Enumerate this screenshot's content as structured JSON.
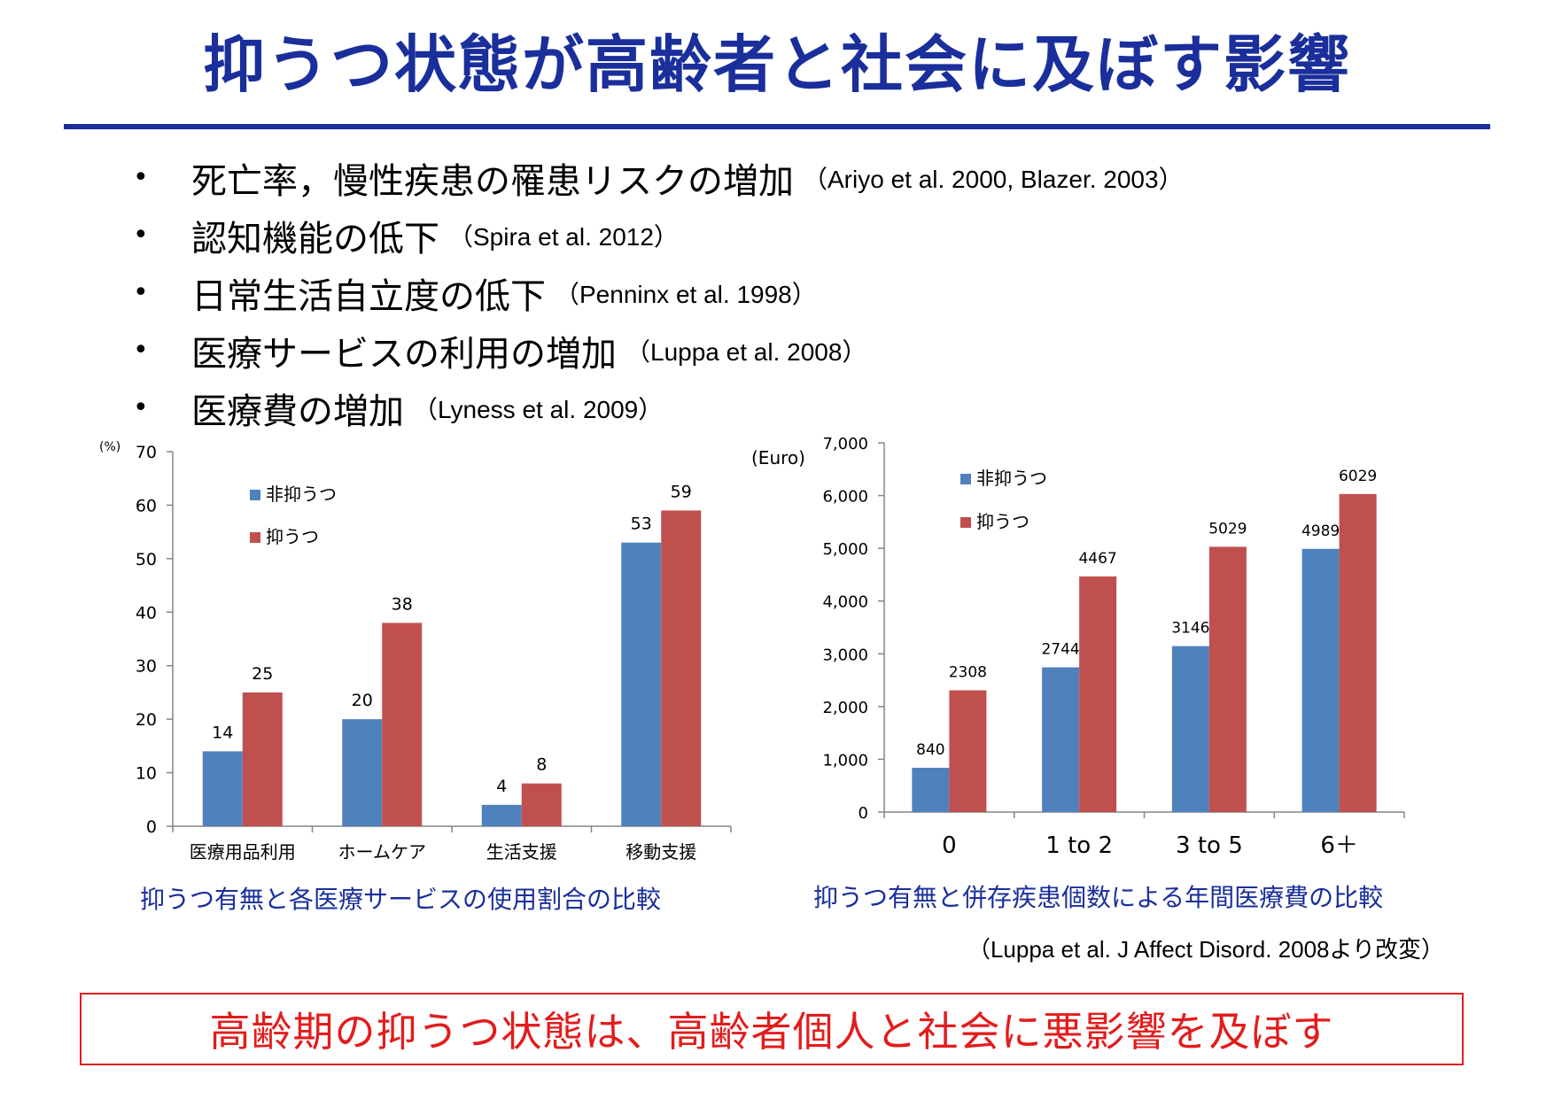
{
  "title": "抑うつ状態が高齢者と社会に及ぼす影響",
  "bullets": [
    {
      "text": "死亡率，慢性疾患の罹患リスクの増加",
      "cite": "（Ariyo et al. 2000, Blazer. 2003）"
    },
    {
      "text": "認知機能の低下",
      "cite": "（Spira et al. 2012）"
    },
    {
      "text": "日常生活自立度の低下",
      "cite": "（Penninx et al. 1998）"
    },
    {
      "text": "医療サービスの利用の増加",
      "cite": "（Luppa et al. 2008）"
    },
    {
      "text": "医療費の増加",
      "cite": "（Lyness et al. 2009）"
    }
  ],
  "bullet_symbol": "•",
  "chart_data": [
    {
      "type": "bar",
      "unit_label": "(%)",
      "categories": [
        "医療用品利用",
        "ホームケア",
        "生活支援",
        "移動支援"
      ],
      "series": [
        {
          "name": "非抑うつ",
          "values": [
            14,
            20,
            4,
            53
          ],
          "color": "#4f81bd"
        },
        {
          "name": "抑うつ",
          "values": [
            25,
            38,
            8,
            59
          ],
          "color": "#c0504d"
        }
      ],
      "ylim": [
        0,
        70
      ],
      "yticks": [
        0,
        10,
        20,
        30,
        40,
        50,
        60,
        70
      ],
      "ytick_labels": [
        "0",
        "10",
        "20",
        "30",
        "40",
        "50",
        "60",
        "70"
      ],
      "data_labels": true,
      "legend_position": "top-left",
      "grid": false,
      "caption": "抑うつ有無と各医療サービスの使用割合の比較"
    },
    {
      "type": "bar",
      "unit_label": "(Euro)",
      "categories": [
        "0",
        "1 to 2",
        "3 to 5",
        "6＋"
      ],
      "series": [
        {
          "name": "非抑うつ",
          "values": [
            840,
            2744,
            3146,
            4989
          ],
          "color": "#4f81bd"
        },
        {
          "name": "抑うつ",
          "values": [
            2308,
            4467,
            5029,
            6029
          ],
          "color": "#c0504d"
        }
      ],
      "ylim": [
        0,
        7000
      ],
      "yticks": [
        0,
        1000,
        2000,
        3000,
        4000,
        5000,
        6000,
        7000
      ],
      "ytick_labels": [
        "0",
        "1,000",
        "2,000",
        "3,000",
        "4,000",
        "5,000",
        "6,000",
        "7,000"
      ],
      "data_labels": true,
      "legend_position": "top-left",
      "grid": false,
      "caption": "抑うつ有無と併存疾患個数による年間医療費の比較"
    }
  ],
  "source": "（Luppa et al. J Affect Disord. 2008より改変）",
  "conclusion": "高齢期の抑うつ状態は、高齢者個人と社会に悪影響を及ぼす"
}
